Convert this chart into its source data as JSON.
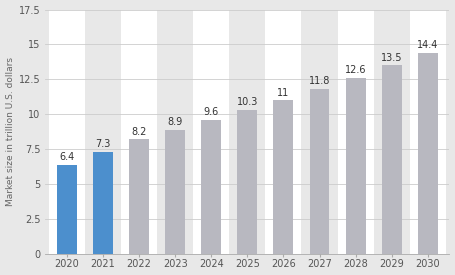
{
  "years": [
    "2020",
    "2021",
    "2022",
    "2023",
    "2024",
    "2025",
    "2026",
    "2027",
    "2028",
    "2029",
    "2030"
  ],
  "values": [
    6.4,
    7.3,
    8.2,
    8.9,
    9.6,
    10.3,
    11,
    11.8,
    12.6,
    13.5,
    14.4
  ],
  "bar_colors": [
    "#4c8fcd",
    "#4c8fcd",
    "#b8b8c0",
    "#b8b8c0",
    "#b8b8c0",
    "#b8b8c0",
    "#b8b8c0",
    "#b8b8c0",
    "#b8b8c0",
    "#b8b8c0",
    "#b8b8c0"
  ],
  "ylabel": "Market size in trillion U.S. dollars",
  "ylim": [
    0,
    17.5
  ],
  "yticks": [
    0,
    2.5,
    5,
    7.5,
    10,
    12.5,
    15,
    17.5
  ],
  "ytick_labels": [
    "0",
    "2.5",
    "5",
    "7.5",
    "10",
    "12.5",
    "15",
    "17.5"
  ],
  "background_color": "#e8e8e8",
  "plot_bg_color": "#e8e8e8",
  "band_color_light": "#ffffff",
  "band_color_dark": "#e8e8e8",
  "grid_color": "#cccccc",
  "label_fontsize": 6.5,
  "axis_fontsize": 7,
  "bar_label_fontsize": 7,
  "bar_width": 0.55
}
